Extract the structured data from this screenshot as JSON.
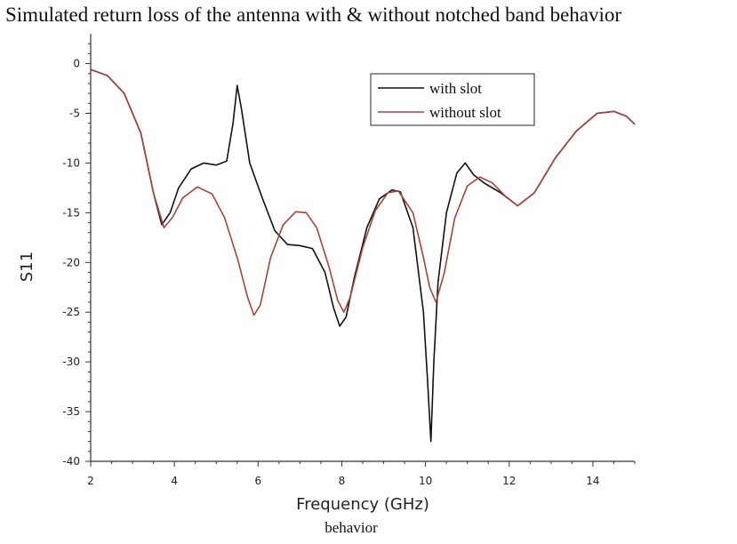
{
  "title": "Simulated return loss of the antenna with & without notched band behavior",
  "caption": "behavior",
  "chart_data": {
    "type": "line",
    "title": "Simulated return loss of the antenna with & without notched band behavior",
    "xlabel": "Frequency (GHz)",
    "ylabel": "S11",
    "xlim": [
      2,
      15
    ],
    "ylim": [
      -40,
      3
    ],
    "xticks": [
      2,
      4,
      6,
      8,
      10,
      12,
      14
    ],
    "yticks": [
      0,
      -5,
      -10,
      -15,
      -20,
      -25,
      -30,
      -35,
      -40
    ],
    "grid": false,
    "legend": "top-right",
    "series": [
      {
        "name": "with slot",
        "color": "#111111",
        "points": [
          [
            2.0,
            -0.6
          ],
          [
            2.4,
            -1.2
          ],
          [
            2.8,
            -3.0
          ],
          [
            3.2,
            -7.0
          ],
          [
            3.5,
            -13.0
          ],
          [
            3.7,
            -16.2
          ],
          [
            3.9,
            -15.0
          ],
          [
            4.1,
            -12.5
          ],
          [
            4.4,
            -10.6
          ],
          [
            4.7,
            -10.0
          ],
          [
            5.0,
            -10.2
          ],
          [
            5.25,
            -9.8
          ],
          [
            5.4,
            -6.0
          ],
          [
            5.5,
            -2.2
          ],
          [
            5.6,
            -4.5
          ],
          [
            5.8,
            -10.0
          ],
          [
            6.1,
            -13.5
          ],
          [
            6.4,
            -16.8
          ],
          [
            6.7,
            -18.2
          ],
          [
            7.0,
            -18.3
          ],
          [
            7.3,
            -18.6
          ],
          [
            7.6,
            -21.0
          ],
          [
            7.8,
            -24.5
          ],
          [
            7.95,
            -26.4
          ],
          [
            8.1,
            -25.5
          ],
          [
            8.3,
            -21.5
          ],
          [
            8.6,
            -16.5
          ],
          [
            8.9,
            -13.6
          ],
          [
            9.2,
            -12.7
          ],
          [
            9.4,
            -12.9
          ],
          [
            9.7,
            -16.5
          ],
          [
            9.95,
            -25.0
          ],
          [
            10.05,
            -32.0
          ],
          [
            10.13,
            -38.0
          ],
          [
            10.2,
            -30.0
          ],
          [
            10.3,
            -22.0
          ],
          [
            10.5,
            -15.0
          ],
          [
            10.75,
            -11.0
          ],
          [
            10.95,
            -10.0
          ],
          [
            11.15,
            -11.2
          ],
          [
            11.4,
            -12.0
          ],
          [
            11.8,
            -13.0
          ],
          [
            12.2,
            -14.3
          ],
          [
            12.6,
            -13.0
          ],
          [
            13.1,
            -9.5
          ],
          [
            13.6,
            -6.8
          ],
          [
            14.1,
            -5.0
          ],
          [
            14.5,
            -4.8
          ],
          [
            14.8,
            -5.3
          ],
          [
            15.0,
            -6.1
          ]
        ]
      },
      {
        "name": "without slot",
        "color": "#a8433f",
        "points": [
          [
            2.0,
            -0.6
          ],
          [
            2.4,
            -1.2
          ],
          [
            2.8,
            -3.0
          ],
          [
            3.2,
            -7.0
          ],
          [
            3.5,
            -13.0
          ],
          [
            3.75,
            -16.5
          ],
          [
            3.95,
            -15.5
          ],
          [
            4.2,
            -13.5
          ],
          [
            4.55,
            -12.4
          ],
          [
            4.9,
            -13.1
          ],
          [
            5.2,
            -15.5
          ],
          [
            5.5,
            -19.5
          ],
          [
            5.75,
            -23.5
          ],
          [
            5.9,
            -25.3
          ],
          [
            6.05,
            -24.3
          ],
          [
            6.3,
            -19.5
          ],
          [
            6.6,
            -16.2
          ],
          [
            6.9,
            -14.9
          ],
          [
            7.15,
            -15.0
          ],
          [
            7.4,
            -16.5
          ],
          [
            7.7,
            -20.5
          ],
          [
            7.9,
            -23.8
          ],
          [
            8.05,
            -25.0
          ],
          [
            8.2,
            -23.5
          ],
          [
            8.5,
            -18.5
          ],
          [
            8.8,
            -14.8
          ],
          [
            9.1,
            -13.0
          ],
          [
            9.35,
            -12.8
          ],
          [
            9.7,
            -15.0
          ],
          [
            9.95,
            -19.5
          ],
          [
            10.1,
            -22.5
          ],
          [
            10.25,
            -24.0
          ],
          [
            10.45,
            -21.0
          ],
          [
            10.7,
            -15.5
          ],
          [
            11.0,
            -12.3
          ],
          [
            11.3,
            -11.4
          ],
          [
            11.6,
            -12.0
          ],
          [
            11.9,
            -13.3
          ],
          [
            12.2,
            -14.3
          ],
          [
            12.6,
            -13.0
          ],
          [
            13.1,
            -9.5
          ],
          [
            13.6,
            -6.8
          ],
          [
            14.1,
            -5.0
          ],
          [
            14.5,
            -4.8
          ],
          [
            14.8,
            -5.3
          ],
          [
            15.0,
            -6.1
          ]
        ]
      }
    ]
  }
}
